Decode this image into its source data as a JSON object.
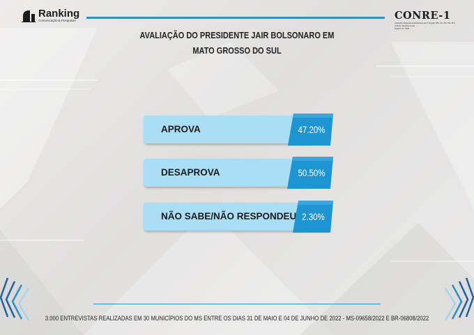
{
  "header": {
    "left_logo": {
      "name": "Ranking",
      "tagline": "Comunicação & Pesquisas"
    },
    "right_logo": {
      "name": "CONRE-1",
      "tagline_lines": [
        "Conselho Regional de Estatística da 1ª Região (RS, SC, PR, MS, MT)",
        "Instituto Ranking Invest",
        "Registro Nº 3422"
      ]
    },
    "accent_color": "#2e8fc9"
  },
  "title": {
    "line1": "AVALIAÇÃO DO PRESIDENTE JAIR BOLSONARO EM",
    "line2": "MATO GROSSO DO SUL"
  },
  "chart_data": {
    "type": "bar",
    "title": "AVALIAÇÃO DO PRESIDENTE JAIR BOLSONARO EM MATO GROSSO DO SUL",
    "categories": [
      "APROVA",
      "DESAPROVA",
      "NÃO SABE/NÃO RESPONDEU"
    ],
    "values": [
      47.2,
      50.5,
      2.3
    ],
    "value_labels": [
      "47.20%",
      "50.50%",
      "2.30%"
    ],
    "unit": "%",
    "label_color": "#a9def5",
    "value_color": "#1f94d2",
    "xlabel": "",
    "ylabel": ""
  },
  "footer": {
    "text": "3.000 ENTREVISTAS REALIZADAS EM 30 MUNICÍPIOS DO MS ENTRE OS DIAS 31 DE MAIO E 04 DE JUNHO DE 2022 - MS-09658/2022 E BR-06808/2022"
  }
}
